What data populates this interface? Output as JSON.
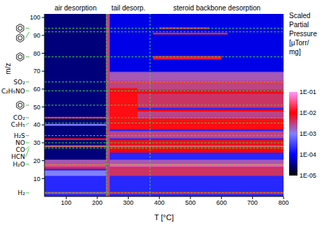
{
  "chart_data": {
    "type": "heatmap",
    "x_label": "T [°C]",
    "y_label": "m/z",
    "xlim": [
      30,
      800
    ],
    "xticks": [
      100,
      200,
      300,
      400,
      500,
      600,
      700,
      800
    ],
    "ylim": [
      0,
      102
    ],
    "yticks": [
      10,
      20,
      30,
      40,
      50,
      60,
      70,
      80,
      90,
      100
    ],
    "color": "#3fd03f",
    "regions": [
      {
        "label": "air desorption",
        "range": [
          30,
          230
        ]
      },
      {
        "label": "tail desorp.",
        "range": [
          230,
          370
        ]
      },
      {
        "label": "steroid backbone desorption",
        "range": [
          370,
          800
        ]
      }
    ],
    "species": [
      {
        "label": "H₂",
        "mz": 2
      },
      {
        "label": "H₂O",
        "mz": 18
      },
      {
        "label": "HCN",
        "mz": 27
      },
      {
        "label": "CO",
        "mz": 28
      },
      {
        "label": "NO",
        "mz": 30
      },
      {
        "label": "H₂S",
        "mz": 34
      },
      {
        "label": "C₃H₅",
        "mz": 41
      },
      {
        "label": "CO₂",
        "mz": 44
      },
      {
        "label": "C₂H₅NO",
        "mz": 59
      },
      {
        "label": "SO₂",
        "mz": 64
      }
    ],
    "structure_lines": [
      94,
      92,
      78,
      51
    ],
    "cells": [
      [
        30,
        800,
        0,
        102,
        3e-05
      ],
      [
        30,
        230,
        0,
        20,
        0.0002
      ],
      [
        230,
        800,
        0,
        70,
        0.0002
      ],
      [
        230,
        800,
        70,
        102,
        8e-05
      ],
      [
        30,
        230,
        1.5,
        2.5,
        0.003
      ],
      [
        230,
        800,
        1.5,
        2.5,
        0.015
      ],
      [
        30,
        230,
        11.5,
        14.5,
        0.001
      ],
      [
        230,
        800,
        11.5,
        16.5,
        0.004
      ],
      [
        30,
        230,
        15.5,
        16.5,
        0.005
      ],
      [
        30,
        230,
        16.5,
        18.5,
        0.03
      ],
      [
        230,
        800,
        16.5,
        18.5,
        0.04
      ],
      [
        30,
        230,
        18.5,
        20.5,
        0.002
      ],
      [
        230,
        800,
        18.5,
        20.5,
        0.002
      ],
      [
        230,
        800,
        24.5,
        27.5,
        0.01
      ],
      [
        30,
        230,
        27.5,
        28.5,
        0.03
      ],
      [
        230,
        800,
        27.5,
        28.5,
        0.03
      ],
      [
        30,
        230,
        31.5,
        32.5,
        0.008
      ],
      [
        230,
        800,
        28.5,
        31.5,
        0.008
      ],
      [
        230,
        800,
        32.5,
        36.5,
        0.003
      ],
      [
        30,
        230,
        39.5,
        40.5,
        0.001
      ],
      [
        230,
        800,
        37.5,
        43.5,
        0.012
      ],
      [
        30,
        230,
        43.5,
        44.5,
        0.005
      ],
      [
        230,
        800,
        43.5,
        44.5,
        0.02
      ],
      [
        230,
        800,
        44.5,
        47.5,
        0.003
      ],
      [
        230,
        800,
        47.5,
        48.5,
        0.01
      ],
      [
        230,
        800,
        49.5,
        57.5,
        0.004
      ],
      [
        230,
        800,
        57.5,
        59.5,
        0.008
      ],
      [
        230,
        800,
        59.5,
        63.5,
        0.003
      ],
      [
        230,
        800,
        63.5,
        64.5,
        0.02
      ],
      [
        230,
        800,
        64.5,
        69.5,
        0.002
      ],
      [
        235,
        330,
        38.5,
        60.5,
        0.012
      ],
      [
        380,
        600,
        76.5,
        78.5,
        0.006
      ],
      [
        380,
        620,
        90.5,
        91.5,
        0.005
      ],
      [
        400,
        560,
        93.5,
        94.5,
        0.005
      ],
      [
        228,
        240,
        0,
        102,
        0.003
      ]
    ],
    "colorbar": {
      "title": "Scaled Partial Pressure [μTorr/ mg]",
      "log": true,
      "range": [
        1e-05,
        0.1
      ],
      "ticks": [
        {
          "value": 0.1,
          "label": "1E-01"
        },
        {
          "value": 0.01,
          "label": "1E-02"
        },
        {
          "value": 0.001,
          "label": "1E-03"
        },
        {
          "value": 0.0001,
          "label": "1E-04"
        },
        {
          "value": 1e-05,
          "label": "1E-05"
        }
      ],
      "colors": [
        "#000000",
        "#0000ff",
        "#8080ff",
        "#ff0000",
        "#ff99ff"
      ]
    }
  }
}
